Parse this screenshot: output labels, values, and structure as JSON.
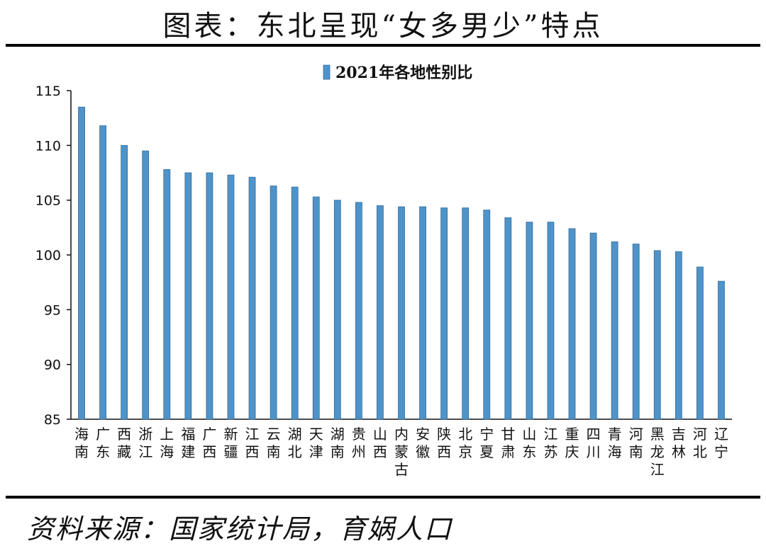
{
  "page": {
    "title": "图表：东北呈现“女多男少”特点",
    "source": "资料来源：国家统计局，育娲人口"
  },
  "colors": {
    "bar_fill": "#4f93c9",
    "bar_edge": "#2f6f9f",
    "axis": "#111111"
  },
  "chart_data": {
    "type": "bar",
    "categories": [
      "海南",
      "广东",
      "西藏",
      "浙江",
      "上海",
      "福建",
      "广西",
      "新疆",
      "江西",
      "云南",
      "湖北",
      "天津",
      "湖南",
      "贵州",
      "山西",
      "内蒙古",
      "安徽",
      "陕西",
      "北京",
      "宁夏",
      "甘肃",
      "山东",
      "江苏",
      "重庆",
      "四川",
      "青海",
      "河南",
      "黑龙江",
      "吉林",
      "河北",
      "辽宁"
    ],
    "series": [
      {
        "name": "2021年各地性别比",
        "values": [
          113.5,
          111.8,
          110.0,
          109.5,
          107.8,
          107.5,
          107.5,
          107.3,
          107.1,
          106.3,
          106.2,
          105.3,
          105.0,
          104.8,
          104.5,
          104.4,
          104.4,
          104.3,
          104.3,
          104.1,
          103.4,
          103.0,
          103.0,
          102.4,
          102.0,
          101.2,
          101.0,
          100.4,
          100.3,
          98.9,
          97.6
        ]
      }
    ],
    "ylim": [
      85,
      115
    ],
    "yticks": [
      85,
      90,
      95,
      100,
      105,
      110,
      115
    ],
    "legend": "top-center",
    "grid": false
  }
}
